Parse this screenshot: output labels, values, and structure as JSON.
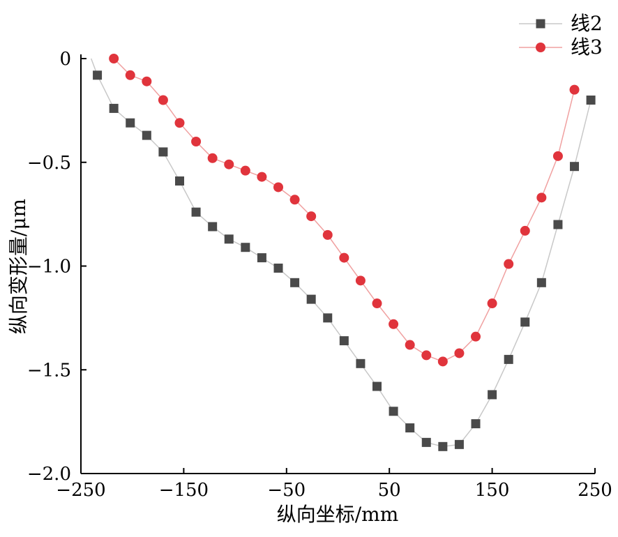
{
  "chart_data": {
    "type": "line",
    "xlabel": "纵向坐标/mm",
    "ylabel": "纵向变形量/μm",
    "xlim": [
      -250,
      250
    ],
    "ylim": [
      -2.0,
      0
    ],
    "xticks": [
      -250,
      -150,
      -50,
      50,
      150,
      250
    ],
    "xtick_labels": [
      "−250",
      "−150",
      "−50",
      "50",
      "150",
      "250"
    ],
    "yticks": [
      0,
      -0.5,
      -1.0,
      -1.5,
      -2.0
    ],
    "ytick_labels": [
      "0",
      "−0.5",
      "−1.0",
      "−1.5",
      "−2.0"
    ],
    "legend_position": "top-right",
    "grid": false,
    "series": [
      {
        "name": "线2",
        "marker": "square",
        "color": "#4a4a4a",
        "line_color": "#c8c8c8",
        "x": [
          -240,
          -234,
          -218,
          -202,
          -186,
          -170,
          -154,
          -138,
          -122,
          -106,
          -90,
          -74,
          -58,
          -42,
          -26,
          -10,
          6,
          22,
          38,
          54,
          70,
          86,
          102,
          118,
          134,
          150,
          166,
          182,
          198,
          214,
          230,
          246
        ],
        "y": [
          0,
          -0.08,
          -0.24,
          -0.31,
          -0.37,
          -0.45,
          -0.59,
          -0.74,
          -0.81,
          -0.87,
          -0.91,
          -0.96,
          -1.01,
          -1.08,
          -1.16,
          -1.25,
          -1.36,
          -1.47,
          -1.58,
          -1.7,
          -1.78,
          -1.85,
          -1.87,
          -1.86,
          -1.76,
          -1.62,
          -1.45,
          -1.27,
          -1.08,
          -0.8,
          -0.52,
          -0.2
        ]
      },
      {
        "name": "线3",
        "marker": "circle",
        "color": "#e0343c",
        "line_color": "#f0a0a0",
        "x": [
          -218,
          -202,
          -186,
          -170,
          -154,
          -138,
          -122,
          -106,
          -90,
          -74,
          -58,
          -42,
          -26,
          -10,
          6,
          22,
          38,
          54,
          70,
          86,
          102,
          118,
          134,
          150,
          166,
          182,
          198,
          214,
          230
        ],
        "y": [
          0,
          -0.08,
          -0.11,
          -0.2,
          -0.31,
          -0.4,
          -0.48,
          -0.51,
          -0.54,
          -0.57,
          -0.62,
          -0.68,
          -0.76,
          -0.85,
          -0.96,
          -1.07,
          -1.18,
          -1.28,
          -1.38,
          -1.43,
          -1.46,
          -1.42,
          -1.34,
          -1.18,
          -0.99,
          -0.83,
          -0.67,
          -0.47,
          -0.15
        ]
      }
    ]
  }
}
